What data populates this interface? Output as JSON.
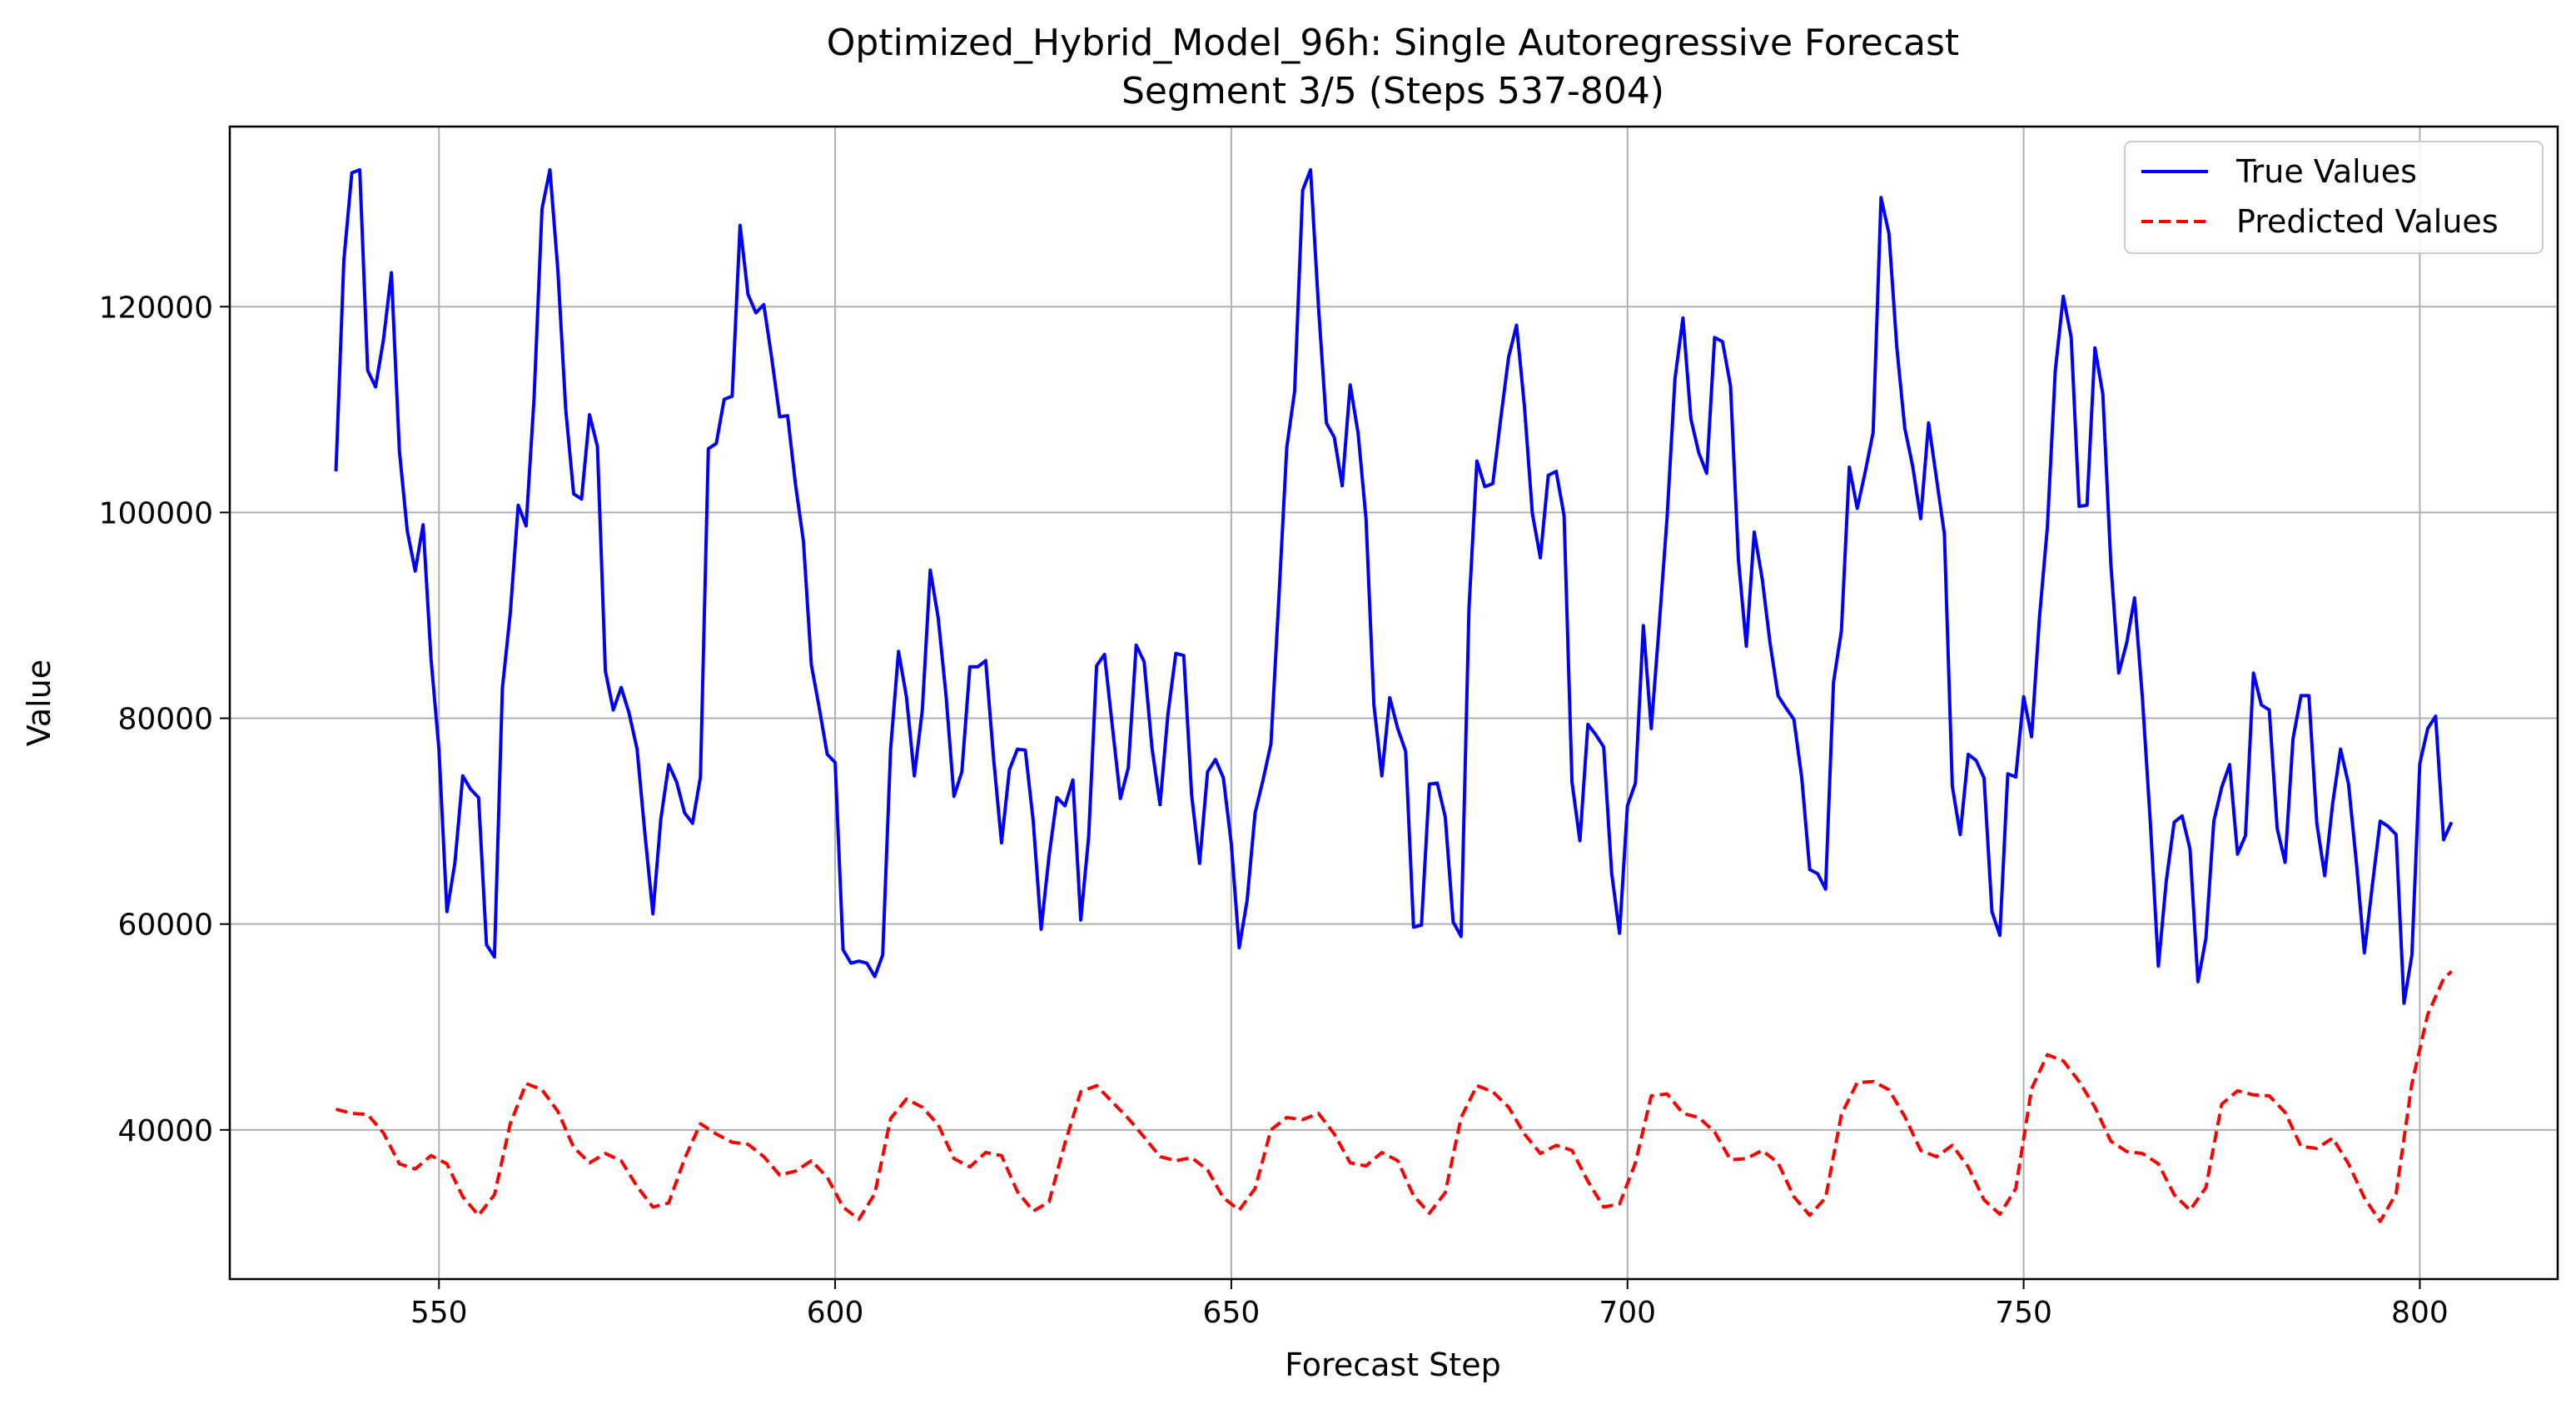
{
  "chart_data": {
    "type": "line",
    "title": "Optimized_Hybrid_Model_96h: Single Autoregressive Forecast",
    "subtitle": "Segment 3/5 (Steps 537-804)",
    "xlabel": "Forecast Step",
    "ylabel": "Value",
    "xlim": [
      523.6,
      817.4
    ],
    "ylim": [
      25500,
      137500
    ],
    "xticks": [
      550,
      600,
      650,
      700,
      750,
      800
    ],
    "yticks": [
      40000,
      60000,
      80000,
      100000,
      120000
    ],
    "grid": true,
    "legend": "upper right",
    "series": [
      {
        "name": "True Values",
        "color": "#0000ff",
        "style": "solid",
        "x": [
          537,
          538,
          539,
          540,
          541,
          542,
          543,
          544,
          545,
          546,
          547,
          548,
          549,
          550,
          551,
          552,
          553,
          554,
          555,
          556,
          557,
          558,
          559,
          560,
          561,
          562,
          563,
          564,
          565,
          566,
          567,
          568,
          569,
          570,
          571,
          572,
          573,
          574,
          575,
          576,
          577,
          578,
          579,
          580,
          581,
          582,
          583,
          584,
          585,
          586,
          587,
          588,
          589,
          590,
          591,
          592,
          593,
          594,
          595,
          596,
          597,
          598,
          599,
          600,
          601,
          602,
          603,
          604,
          605,
          606,
          607,
          608,
          609,
          610,
          611,
          612,
          613,
          614,
          615,
          616,
          617,
          618,
          619,
          620,
          621,
          622,
          623,
          624,
          625,
          626,
          627,
          628,
          629,
          630,
          631,
          632,
          633,
          634,
          635,
          636,
          637,
          638,
          639,
          640,
          641,
          642,
          643,
          644,
          645,
          646,
          647,
          648,
          649,
          650,
          651,
          652,
          653,
          654,
          655,
          656,
          657,
          658,
          659,
          660,
          661,
          662,
          663,
          664,
          665,
          666,
          667,
          668,
          669,
          670,
          671,
          672,
          673,
          674,
          675,
          676,
          677,
          678,
          679,
          680,
          681,
          682,
          683,
          684,
          685,
          686,
          687,
          688,
          689,
          690,
          691,
          692,
          693,
          694,
          695,
          696,
          697,
          698,
          699,
          700,
          701,
          702,
          703,
          704,
          705,
          706,
          707,
          708,
          709,
          710,
          711,
          712,
          713,
          714,
          715,
          716,
          717,
          718,
          719,
          720,
          721,
          722,
          723,
          724,
          725,
          726,
          727,
          728,
          729,
          730,
          731,
          732,
          733,
          734,
          735,
          736,
          737,
          738,
          739,
          740,
          741,
          742,
          743,
          744,
          745,
          746,
          747,
          748,
          749,
          750,
          751,
          752,
          753,
          754,
          755,
          756,
          757,
          758,
          759,
          760,
          761,
          762,
          763,
          764,
          765,
          766,
          767,
          768,
          769,
          770,
          771,
          772,
          773,
          774,
          775,
          776,
          777,
          778,
          779,
          780,
          781,
          782,
          783,
          784,
          785,
          786,
          787,
          788,
          789,
          790,
          791,
          792,
          793,
          794,
          795,
          796,
          797,
          798,
          799,
          800,
          801,
          802,
          803,
          804
        ],
        "y": [
          104000,
          124500,
          133000,
          133300,
          113800,
          112200,
          116800,
          123300,
          106000,
          98200,
          94300,
          98800,
          85800,
          77000,
          61200,
          65900,
          74400,
          73100,
          72300,
          58000,
          56800,
          82900,
          90200,
          100700,
          98700,
          111000,
          129500,
          133300,
          123600,
          110000,
          101800,
          101300,
          109500,
          106400,
          84600,
          80800,
          83000,
          80500,
          77000,
          68700,
          61000,
          70200,
          75500,
          73800,
          70800,
          69800,
          74300,
          106200,
          106700,
          111000,
          111300,
          127900,
          121200,
          119400,
          120200,
          115000,
          109300,
          109400,
          102700,
          97200,
          85200,
          81000,
          76500,
          75700,
          57500,
          56200,
          56400,
          56200,
          54900,
          57000,
          77000,
          86500,
          82100,
          74400,
          80800,
          94400,
          89800,
          82200,
          72400,
          74800,
          85000,
          85000,
          85600,
          76100,
          67900,
          75000,
          77000,
          76900,
          70000,
          59500,
          66600,
          72300,
          71500,
          74000,
          60400,
          68500,
          85100,
          86200,
          79100,
          72200,
          75200,
          87100,
          85500,
          77100,
          71600,
          80400,
          86300,
          86100,
          72500,
          65900,
          74800,
          76000,
          74200,
          67800,
          57700,
          62300,
          70800,
          74000,
          77500,
          91600,
          106300,
          111800,
          131300,
          133300,
          120000,
          108700,
          107300,
          102600,
          112400,
          107700,
          99400,
          81300,
          74400,
          82000,
          79000,
          76800,
          59700,
          59900,
          73600,
          73700,
          70400,
          60200,
          58800,
          90700,
          105000,
          102500,
          102800,
          109100,
          115100,
          118200,
          110300,
          99900,
          95600,
          103600,
          104000,
          99700,
          73800,
          68100,
          79400,
          78400,
          77200,
          65000,
          59100,
          71500,
          73700,
          89000,
          79000,
          89000,
          99500,
          113000,
          118900,
          109100,
          105800,
          103800,
          117000,
          116600,
          112300,
          95400,
          87000,
          98100,
          93600,
          87300,
          82200,
          81000,
          79900,
          74200,
          65300,
          64900,
          63400,
          83500,
          88500,
          104400,
          100400,
          103900,
          107800,
          130600,
          127100,
          116000,
          108200,
          104500,
          99400,
          108700,
          103300,
          97900,
          73400,
          68700,
          76500,
          75900,
          74200,
          61200,
          58900,
          74600,
          74300,
          82100,
          78200,
          89800,
          98600,
          113800,
          121000,
          117000,
          100600,
          100700,
          116000,
          111500,
          95000,
          84400,
          87300,
          91700,
          81900,
          69800,
          55900,
          64200,
          69900,
          70500,
          67300,
          54400,
          58600,
          70000,
          73300,
          75500,
          66800,
          68600,
          84400,
          81300,
          80800,
          69300,
          66000,
          78000,
          82200,
          82200,
          69800,
          64700,
          71700,
          77000,
          73600,
          65900,
          57200,
          63700,
          70000,
          69500,
          68700,
          52300,
          57000,
          75600,
          79000,
          80200,
          68200,
          69900
        ]
      },
      {
        "name": "Predicted Values",
        "color": "#ff0000",
        "style": "dashed",
        "x": [
          537,
          539,
          541,
          543,
          545,
          547,
          549,
          551,
          553,
          555,
          557,
          559,
          561,
          563,
          565,
          567,
          569,
          571,
          573,
          575,
          577,
          579,
          581,
          583,
          585,
          587,
          589,
          591,
          593,
          595,
          597,
          599,
          601,
          603,
          605,
          607,
          609,
          611,
          613,
          615,
          617,
          619,
          621,
          623,
          625,
          627,
          629,
          631,
          633,
          635,
          637,
          639,
          641,
          643,
          645,
          647,
          649,
          651,
          653,
          655,
          657,
          659,
          661,
          663,
          665,
          667,
          669,
          671,
          673,
          675,
          677,
          679,
          681,
          683,
          685,
          687,
          689,
          691,
          693,
          695,
          697,
          699,
          701,
          703,
          705,
          707,
          709,
          711,
          713,
          715,
          717,
          719,
          721,
          723,
          725,
          727,
          729,
          731,
          733,
          735,
          737,
          739,
          741,
          743,
          745,
          747,
          749,
          751,
          753,
          755,
          757,
          759,
          761,
          763,
          765,
          767,
          769,
          771,
          773,
          775,
          777,
          779,
          781,
          783,
          785,
          787,
          789,
          791,
          793,
          795,
          797,
          799,
          801,
          803,
          804
        ],
        "y": [
          42000,
          41600,
          41500,
          39700,
          36700,
          36200,
          37500,
          36700,
          33500,
          31700,
          33700,
          40600,
          44500,
          43900,
          41800,
          38300,
          36800,
          37700,
          37000,
          34500,
          32500,
          32900,
          37200,
          40600,
          39600,
          38800,
          38600,
          37400,
          35600,
          36000,
          37000,
          35400,
          32500,
          31300,
          33800,
          41100,
          43000,
          42200,
          40500,
          37200,
          36400,
          37800,
          37500,
          34000,
          32100,
          33000,
          38700,
          43700,
          44300,
          42700,
          41100,
          39300,
          37400,
          37000,
          37300,
          36100,
          33400,
          32200,
          34300,
          40000,
          41200,
          41000,
          41600,
          39600,
          36800,
          36500,
          37800,
          37000,
          33600,
          31900,
          33900,
          41200,
          44300,
          43700,
          42200,
          39600,
          37700,
          38500,
          38000,
          35000,
          32500,
          32800,
          36800,
          43300,
          43500,
          41600,
          41200,
          39800,
          37100,
          37200,
          38000,
          36800,
          33500,
          31700,
          33400,
          41500,
          44600,
          44700,
          43900,
          41300,
          38000,
          37400,
          38500,
          36400,
          33200,
          31800,
          34300,
          44000,
          47300,
          46700,
          44700,
          42200,
          38900,
          37900,
          37700,
          36700,
          33700,
          32200,
          34400,
          42500,
          43800,
          43400,
          43300,
          41700,
          38400,
          38200,
          39200,
          36700,
          33400,
          31100,
          33800,
          44500,
          51200,
          54700,
          55400
        ]
      }
    ]
  }
}
